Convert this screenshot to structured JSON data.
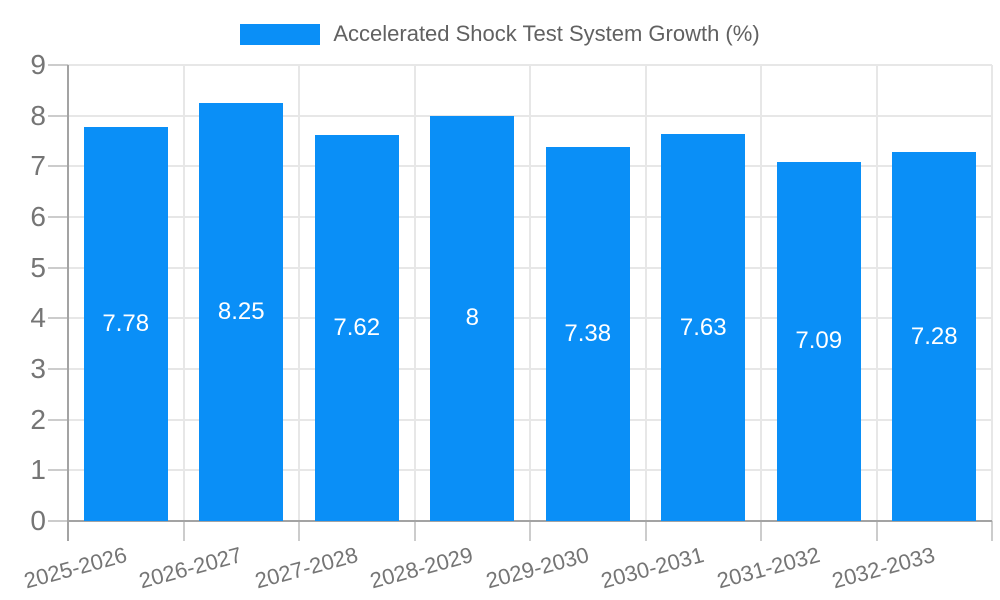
{
  "legend": {
    "label": "Accelerated Shock Test System Growth (%)"
  },
  "chart_data": {
    "type": "bar",
    "title": "Accelerated Shock Test System Growth (%)",
    "categories": [
      "2025-2026",
      "2026-2027",
      "2027-2028",
      "2028-2029",
      "2029-2030",
      "2030-2031",
      "2031-2032",
      "2032-2033"
    ],
    "values": [
      7.78,
      8.25,
      7.62,
      8,
      7.38,
      7.63,
      7.09,
      7.28
    ],
    "value_labels": [
      "7.78",
      "8.25",
      "7.62",
      "8",
      "7.38",
      "7.63",
      "7.09",
      "7.28"
    ],
    "xlabel": "",
    "ylabel": "",
    "ylim": [
      0,
      9
    ],
    "y_ticks": [
      0,
      1,
      2,
      3,
      4,
      5,
      6,
      7,
      8,
      9
    ],
    "grid": "on",
    "legend_position": "top-center",
    "colors": {
      "bar": "#0a8ff7",
      "bar_value_text": "#ffffff",
      "gridline": "#e7e7e7",
      "axis": "#a3a3a3",
      "tick": "#cccccc",
      "tick_text": "#757575",
      "title_text": "#616161",
      "background": "#ffffff"
    }
  }
}
